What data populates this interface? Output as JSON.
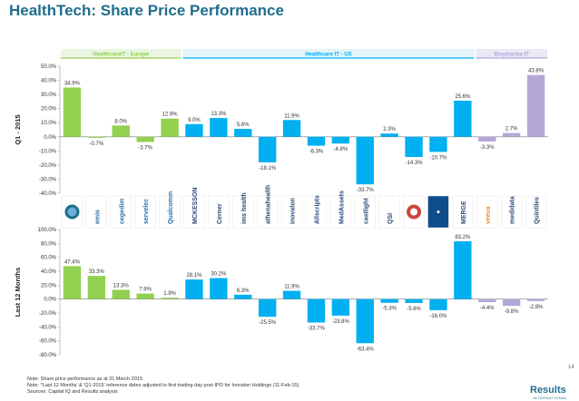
{
  "title": "HealthTech: Share Price Performance",
  "notes": [
    "Note: Share price performance as at 31 March 2015",
    "Note: *Last 12 Months' & 'Q1-2015' reference dates adjusted to first trading day post IPO for Inovalon Holdings (11-Feb-15)",
    "Sources: Capital IQ and Results analysis"
  ],
  "brand": "Results",
  "brand_sub": "INTERNATIONAL",
  "page_number": "14",
  "colors": {
    "europe": "#92d050",
    "us": "#00b0f0",
    "biopharma": "#b4a7d6",
    "title": "#1f6e8c",
    "header_band": "#eaf6e1"
  },
  "companies": [
    {
      "group": "HealthcareIT - Europe",
      "logo": "circle-logo"
    },
    {
      "group": "HealthcareIT - Europe",
      "logo": "emis"
    },
    {
      "group": "HealthcareIT - Europe",
      "logo": "cegedim"
    },
    {
      "group": "HealthcareIT - Europe",
      "logo": "servelec"
    },
    {
      "group": "HealthcareIT - Europe",
      "logo": "Qualcomm"
    },
    {
      "group": "Healthcare IT - US",
      "logo": "MCKESSON"
    },
    {
      "group": "Healthcare IT - US",
      "logo": "Cerner"
    },
    {
      "group": "Healthcare IT - US",
      "logo": "ims health"
    },
    {
      "group": "Healthcare IT - US",
      "logo": "athenahealth"
    },
    {
      "group": "Healthcare IT - US",
      "logo": "inovalon"
    },
    {
      "group": "Healthcare IT - US",
      "logo": "Allscripts"
    },
    {
      "group": "Healthcare IT - US",
      "logo": "MedAssets"
    },
    {
      "group": "Healthcare IT - US",
      "logo": "castlight"
    },
    {
      "group": "Healthcare IT - US",
      "logo": "QSI"
    },
    {
      "group": "Healthcare IT - US",
      "logo": "seal-logo"
    },
    {
      "group": "Healthcare IT - US",
      "logo": "dark-logo"
    },
    {
      "group": "Healthcare IT - US",
      "logo": "MERGE"
    },
    {
      "group": "Biopharma IT",
      "logo": "veeva"
    },
    {
      "group": "Biopharma IT",
      "logo": "medidata"
    },
    {
      "group": "Biopharma IT",
      "logo": "Quintiles"
    }
  ],
  "chart_data": [
    {
      "type": "bar",
      "ylabel": "Q1 - 2015",
      "ylim": [
        -40,
        50
      ],
      "ticks": [
        "50.0%",
        "40.0%",
        "30.0%",
        "20.0%",
        "10.0%",
        "0.0%",
        "-10.0%",
        "-20.0%",
        "-30.0%",
        "-40.0%"
      ],
      "groups": [
        "HealthcareIT - Europe",
        "Healthcare IT - US",
        "Biopharma IT"
      ],
      "values": [
        34.9,
        -0.7,
        8.0,
        -3.7,
        12.9,
        9.0,
        13.3,
        5.6,
        -18.1,
        11.9,
        -6.3,
        -4.8,
        -33.7,
        2.3,
        -14.3,
        -10.7,
        25.6,
        -3.3,
        2.7,
        43.8
      ],
      "labels": [
        "34.9%",
        "-0.7%",
        "8.0%",
        "-3.7%",
        "12.9%",
        "9.0%",
        "13.3%",
        "5.6%",
        "-18.1%",
        "11.9%",
        "-6.3%",
        "-4.8%",
        "-33.7%",
        "2.3%",
        "-14.3%",
        "-10.7%",
        "25.6%",
        "-3.3%",
        "2.7%",
        "43.8%"
      ],
      "grid": false,
      "legend": "none"
    },
    {
      "type": "bar",
      "ylabel": "Last 12 Months",
      "ylim": [
        -80,
        100
      ],
      "ticks": [
        "100.0%",
        "80.0%",
        "60.0%",
        "40.0%",
        "20.0%",
        "0.0%",
        "-20.0%",
        "-40.0%",
        "-60.0%",
        "-80.0%"
      ],
      "values": [
        47.4,
        33.3,
        13.3,
        7.9,
        1.9,
        28.1,
        30.2,
        6.3,
        -25.5,
        11.9,
        -33.7,
        -23.8,
        -63.4,
        -5.3,
        -5.6,
        -16.0,
        83.2,
        -4.4,
        -9.8,
        -2.8
      ],
      "labels": [
        "47.4%",
        "33.3%",
        "13.3%",
        "7.9%",
        "1.9%",
        "28.1%",
        "30.2%",
        "6.3%",
        "-25.5%",
        "11.9%",
        "-33.7%",
        "-23.8%",
        "-63.4%",
        "-5.3%",
        "-5.6%",
        "-16.0%",
        "83.2%",
        "-4.4%",
        "-9.8%",
        "-2.8%"
      ],
      "grid": false,
      "legend": "none"
    }
  ]
}
